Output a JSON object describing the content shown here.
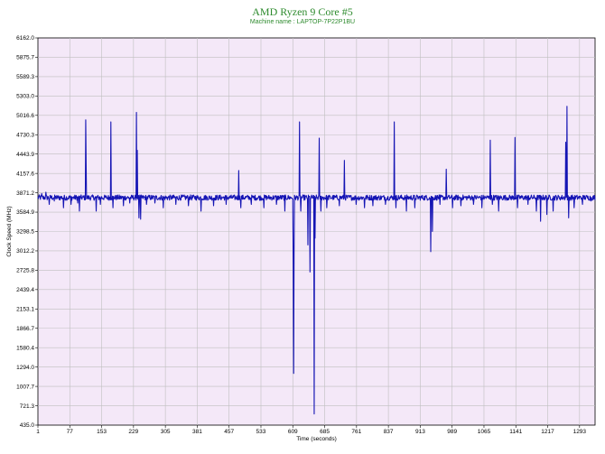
{
  "header": {
    "title": "AMD Ryzen 9 Core #5",
    "subtitle": "Machine name : LAPTOP-7P22P1BU"
  },
  "colors": {
    "plot_background": "#f4e8f8",
    "grid": "#bfbfbf",
    "line": "#1414b4",
    "title": "#2e8b2e"
  },
  "chart_data": {
    "type": "line",
    "title": "AMD Ryzen 9 Core #5",
    "subtitle": "Machine name : LAPTOP-7P22P1BU",
    "xlabel": "Time (seconds)",
    "ylabel": "Clock Speed (MHz)",
    "xlim": [
      1,
      1330
    ],
    "ylim": [
      435.0,
      6162.0
    ],
    "grid": true,
    "y_ticks": [
      "435.0",
      "721.3",
      "1007.7",
      "1294.0",
      "1580.4",
      "1866.7",
      "2153.1",
      "2439.4",
      "2725.8",
      "3012.2",
      "3298.5",
      "3584.9",
      "3871.2",
      "4157.6",
      "4443.9",
      "4730.3",
      "5016.6",
      "5303.0",
      "5589.3",
      "5875.7",
      "6162.0"
    ],
    "x_ticks": [
      "1",
      "77",
      "153",
      "229",
      "305",
      "381",
      "457",
      "533",
      "609",
      "685",
      "761",
      "837",
      "913",
      "989",
      "1065",
      "1141",
      "1217",
      "1293"
    ],
    "series": [
      {
        "baseline": 3800,
        "noise": 40,
        "spikes": [
          [
            10,
            3860
          ],
          [
            20,
            3880
          ],
          [
            28,
            3700
          ],
          [
            40,
            3750
          ],
          [
            55,
            3820
          ],
          [
            62,
            3650
          ],
          [
            80,
            3700
          ],
          [
            96,
            3720
          ],
          [
            100,
            3600
          ],
          [
            115,
            4950
          ],
          [
            116,
            4300
          ],
          [
            140,
            3600
          ],
          [
            150,
            3700
          ],
          [
            175,
            4920
          ],
          [
            180,
            3650
          ],
          [
            205,
            3680
          ],
          [
            220,
            3720
          ],
          [
            236,
            5060
          ],
          [
            238,
            4500
          ],
          [
            242,
            3500
          ],
          [
            246,
            3480
          ],
          [
            260,
            3700
          ],
          [
            280,
            3720
          ],
          [
            300,
            3650
          ],
          [
            330,
            3700
          ],
          [
            360,
            3680
          ],
          [
            390,
            3600
          ],
          [
            420,
            3680
          ],
          [
            450,
            3700
          ],
          [
            480,
            4200
          ],
          [
            485,
            3650
          ],
          [
            510,
            3700
          ],
          [
            540,
            3650
          ],
          [
            570,
            3700
          ],
          [
            590,
            3600
          ],
          [
            610,
            2800
          ],
          [
            611,
            1200
          ],
          [
            612,
            3000
          ],
          [
            625,
            4920
          ],
          [
            628,
            3600
          ],
          [
            645,
            3100
          ],
          [
            650,
            2700
          ],
          [
            660,
            600
          ],
          [
            662,
            3200
          ],
          [
            672,
            4680
          ],
          [
            676,
            3600
          ],
          [
            690,
            3650
          ],
          [
            720,
            3680
          ],
          [
            732,
            4350
          ],
          [
            760,
            3700
          ],
          [
            780,
            3650
          ],
          [
            800,
            3680
          ],
          [
            830,
            3700
          ],
          [
            851,
            4920
          ],
          [
            855,
            3650
          ],
          [
            880,
            3600
          ],
          [
            900,
            3650
          ],
          [
            938,
            3000
          ],
          [
            942,
            3300
          ],
          [
            960,
            3700
          ],
          [
            975,
            4220
          ],
          [
            990,
            3650
          ],
          [
            1010,
            3680
          ],
          [
            1040,
            3700
          ],
          [
            1060,
            3650
          ],
          [
            1080,
            4650
          ],
          [
            1085,
            3700
          ],
          [
            1100,
            3600
          ],
          [
            1139,
            4690
          ],
          [
            1145,
            3650
          ],
          [
            1170,
            3700
          ],
          [
            1190,
            3600
          ],
          [
            1200,
            3450
          ],
          [
            1215,
            3550
          ],
          [
            1230,
            3600
          ],
          [
            1260,
            4620
          ],
          [
            1263,
            5150
          ],
          [
            1267,
            3500
          ],
          [
            1280,
            3650
          ],
          [
            1300,
            3700
          ],
          [
            1320,
            3750
          ]
        ]
      }
    ]
  },
  "axes": {
    "xlabel": "Time (seconds)",
    "ylabel": "Clock Speed (MHz)"
  }
}
